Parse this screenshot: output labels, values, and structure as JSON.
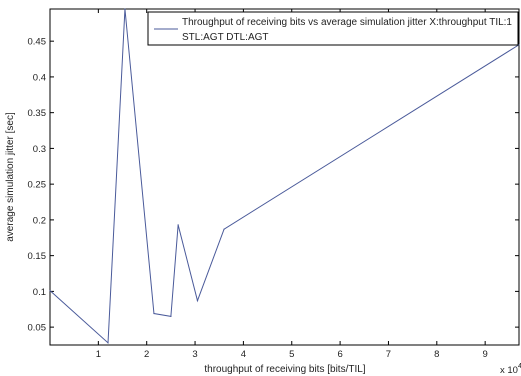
{
  "chart_data": {
    "type": "line",
    "xlabel": "throughput of receiving bits [bits/TIL]",
    "ylabel": "average simulation jitter [sec]",
    "x_multiplier_label": "x 10",
    "x_multiplier_exponent": "4",
    "xlim": [
      0.0,
      9.7
    ],
    "ylim": [
      0.025,
      0.495
    ],
    "x_ticks": [
      1,
      2,
      3,
      4,
      5,
      6,
      7,
      8,
      9
    ],
    "y_ticks": [
      0.05,
      0.1,
      0.15,
      0.2,
      0.25,
      0.3,
      0.35,
      0.4,
      0.45
    ],
    "x_tick_labels": [
      "1",
      "2",
      "3",
      "4",
      "5",
      "6",
      "7",
      "8",
      "9"
    ],
    "y_tick_labels": [
      "0.05",
      "0.1",
      "0.15",
      "0.2",
      "0.25",
      "0.3",
      "0.35",
      "0.4",
      "0.45"
    ],
    "grid": false,
    "legend_position": "top-right",
    "series": [
      {
        "name": "Throughput of receiving bits vs average simulation jitter X:throughput TIL:1 STL:AGT DTL:AGT",
        "legend_lines": [
          "Throughput of receiving bits vs average simulation jitter X:throughput TIL:1",
          "STL:AGT DTL:AGT"
        ],
        "color": "#4a5a9a",
        "x": [
          0.0,
          1.2,
          1.55,
          2.15,
          2.5,
          2.65,
          3.05,
          3.6,
          9.7
        ],
        "y": [
          0.101,
          0.028,
          0.495,
          0.069,
          0.065,
          0.193,
          0.087,
          0.187,
          0.445
        ]
      }
    ]
  }
}
